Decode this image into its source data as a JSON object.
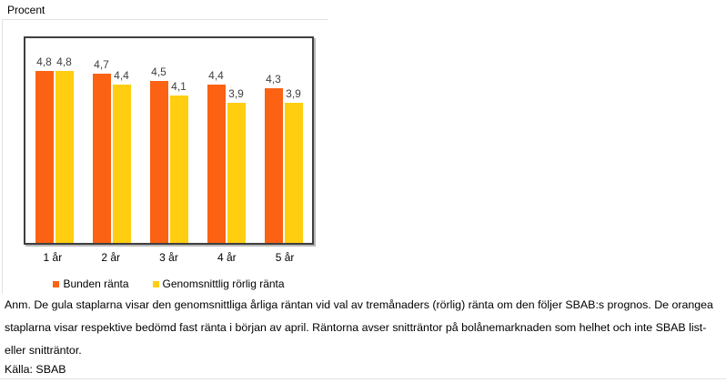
{
  "chart": {
    "title_label": "Procent"
  },
  "chart_data": {
    "type": "bar",
    "title": "Procent",
    "categories": [
      "1 år",
      "2 år",
      "3 år",
      "4 år",
      "5 år"
    ],
    "series": [
      {
        "name": "Bunden ränta",
        "color": "#fb6213",
        "values": [
          4.8,
          4.7,
          4.5,
          4.4,
          4.3
        ],
        "labels": [
          "4,8",
          "4,7",
          "4,5",
          "4,4",
          "4,3"
        ]
      },
      {
        "name": "Genomsnittlig rörlig ränta",
        "color": "#ffce10",
        "values": [
          4.8,
          4.4,
          4.1,
          3.9,
          3.9
        ],
        "labels": [
          "4,8",
          "4,4",
          "4,1",
          "3,9",
          "3,9"
        ]
      }
    ],
    "xlabel": "",
    "ylabel": "",
    "ylim": [
      0,
      5.7
    ],
    "grid": false,
    "legend_position": "bottom",
    "value_labels_shown": true
  },
  "notes": {
    "annotation": "Anm. De gula staplarna visar den genomsnittliga årliga räntan vid val av tremånaders (rörlig) ränta om den följer SBAB:s prognos. De orangea staplarna visar respektive bedömd fast ränta i början av april. Räntorna avser snitträntor på bolånemarknaden som helhet och inte SBAB list- eller snitträntor.",
    "source": "Källa: SBAB"
  }
}
